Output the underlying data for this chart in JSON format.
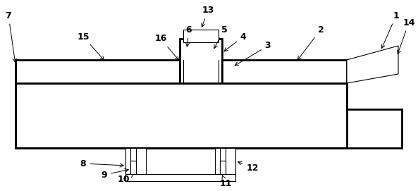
{
  "bg_color": "#ffffff",
  "line_color": "#000000",
  "thick_lw": 2.0,
  "thin_lw": 0.8,
  "figsize": [
    5.93,
    2.71
  ],
  "dpi": 100
}
